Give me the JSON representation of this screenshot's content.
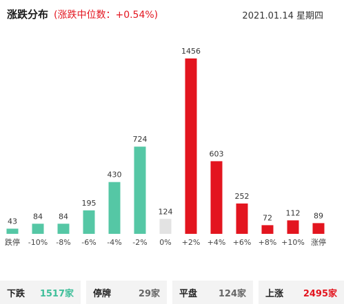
{
  "header": {
    "title": "涨跌分布",
    "median": "(涨跌中位数：+0.54%)",
    "date": "2021.01.14 星期四"
  },
  "colors": {
    "fall": "#55c7a5",
    "suspend": "#e3e3e3",
    "rise": "#e3151f"
  },
  "chart_data": {
    "type": "bar",
    "categories": [
      "跌停",
      "-10%",
      "-8%",
      "-6%",
      "-4%",
      "-2%",
      "0%",
      "+2%",
      "+4%",
      "+6%",
      "+8%",
      "+10%",
      "涨停"
    ],
    "values": [
      43,
      84,
      84,
      195,
      430,
      724,
      124,
      1456,
      603,
      252,
      72,
      112,
      89
    ],
    "bar_colors": [
      "fall",
      "fall",
      "fall",
      "fall",
      "fall",
      "fall",
      "suspend",
      "rise",
      "rise",
      "rise",
      "rise",
      "rise",
      "rise"
    ],
    "ylim": [
      0,
      1456
    ],
    "grid": false,
    "legend": "none"
  },
  "summary": [
    {
      "label": "下跌",
      "value": "1517家",
      "tone": "green"
    },
    {
      "label": "停牌",
      "value": "29家",
      "tone": "gray"
    },
    {
      "label": "平盘",
      "value": "124家",
      "tone": "gray"
    },
    {
      "label": "上涨",
      "value": "2495家",
      "tone": "red"
    }
  ]
}
